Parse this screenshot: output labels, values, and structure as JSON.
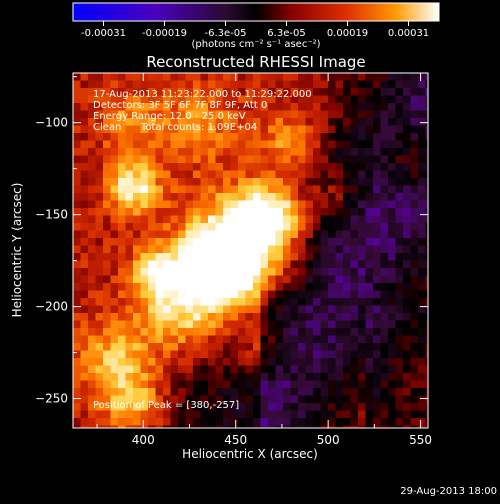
{
  "chart_data": {
    "type": "heatmap",
    "title": "Reconstructed RHESSI Image",
    "xlabel": "Heliocentric X (arcsec)",
    "ylabel": "Heliocentric Y (arcsec)",
    "xlim": [
      362,
      554
    ],
    "ylim": [
      -266,
      -73
    ],
    "x_ticks": [
      400,
      450,
      500,
      550
    ],
    "y_ticks": [
      -250,
      -200,
      -150,
      -100
    ],
    "colorbar": {
      "ticks": [
        "-0.00031",
        "-0.00019",
        "-6.3e-05",
        "6.3e-05",
        "0.00019",
        "0.00031"
      ],
      "unit_label": "(photons cm⁻² s⁻¹ asec⁻²)",
      "range": [
        -0.00031,
        0.00031
      ],
      "colormap": [
        "#0000c8",
        "#5a00aa",
        "#320a32",
        "#000000",
        "#7a0000",
        "#d22800",
        "#ff7a00",
        "#ffd040",
        "#ffffff"
      ]
    },
    "annotations": [
      "17-Aug-2013 11:23:22.000 to 11:29:22.000",
      "Detectors: 3F 5F 6F 7F 8F 9F, Att 0",
      "Energy Range: 12.0 - 25.0 keV",
      "Clean",
      "Total counts: 1.09E+04"
    ],
    "peak_label": "Position of Peak = [380,-257]",
    "peak_position": [
      380,
      -257
    ]
  },
  "footer_timestamp": "29-Aug-2013 18:00"
}
